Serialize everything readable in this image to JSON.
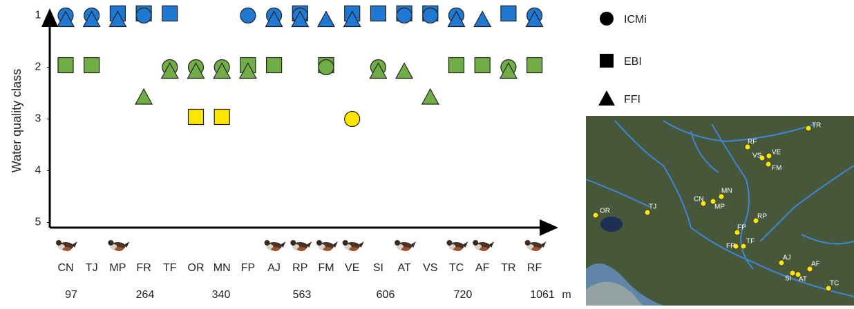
{
  "chart_data": {
    "type": "scatter",
    "y_label": "Water quality class",
    "categories": [
      "CN",
      "TJ",
      "MP",
      "FR",
      "TF",
      "OR",
      "MN",
      "FP",
      "AJ",
      "RP",
      "FM",
      "VE",
      "SI",
      "AT",
      "VS",
      "TC",
      "AF",
      "TR",
      "RF"
    ],
    "series": [
      {
        "name": "ICMi",
        "marker": "circle",
        "values": [
          1,
          1,
          null,
          1,
          2,
          2,
          2,
          1,
          1,
          1,
          2,
          3,
          2,
          1,
          1,
          1,
          null,
          2,
          1
        ]
      },
      {
        "name": "EBI",
        "marker": "square",
        "values": [
          2,
          2,
          1,
          1,
          1,
          3,
          3,
          2,
          2,
          1,
          2,
          1,
          1,
          1,
          1,
          2,
          2,
          1,
          2
        ]
      },
      {
        "name": "FFI",
        "marker": "triangle",
        "values": [
          1,
          1,
          1,
          2.5,
          2,
          2,
          2,
          2,
          1,
          1,
          1,
          1,
          2,
          2,
          2.5,
          1,
          1,
          2,
          1
        ]
      }
    ],
    "class_colors": [
      "#1f78d1",
      "#70ad47",
      "#ffe600"
    ],
    "dipper": [
      true,
      false,
      true,
      false,
      false,
      false,
      false,
      false,
      true,
      true,
      true,
      true,
      false,
      true,
      false,
      true,
      true,
      false,
      true
    ],
    "altitudes": [
      97,
      264,
      340,
      563,
      606,
      720,
      1061
    ],
    "altitude_unit": "m",
    "ylim": [
      5.1,
      0.9
    ],
    "yticks": [
      1,
      2,
      3,
      4,
      5
    ]
  },
  "map": {
    "sites": [
      "TR",
      "RF",
      "VS",
      "VE",
      "FM",
      "MN",
      "CN",
      "MP",
      "OR",
      "TJ",
      "RP",
      "FP",
      "FR",
      "TF",
      "AJ",
      "AF",
      "SI",
      "AT",
      "TC"
    ]
  }
}
